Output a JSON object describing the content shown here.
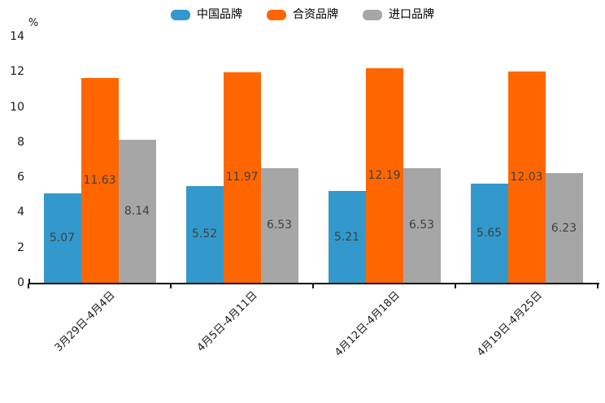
{
  "chart_data": {
    "type": "bar",
    "title": "",
    "unit_label": "%",
    "categories": [
      "3月29日-4月4日",
      "4月5日-4月11日",
      "4月12日-4月18日",
      "4月19日-4月25日"
    ],
    "series": [
      {
        "name": "中国品牌",
        "color": "#3399CC",
        "values": [
          5.07,
          5.52,
          5.21,
          5.65
        ]
      },
      {
        "name": "合资品牌",
        "color": "#FF6600",
        "values": [
          11.63,
          11.97,
          12.19,
          12.03
        ]
      },
      {
        "name": "进口品牌",
        "color": "#A6A6A6",
        "values": [
          8.14,
          6.53,
          6.53,
          6.23
        ]
      }
    ],
    "y_axis": {
      "min": 0,
      "max": 14,
      "tick_step": 2,
      "ticks": [
        0,
        2,
        4,
        6,
        8,
        10,
        12,
        14
      ]
    },
    "legend_position": "top-center",
    "grid": false,
    "value_labels": "inside-center",
    "value_label_color": "#404040",
    "axis_color": "#111111"
  }
}
